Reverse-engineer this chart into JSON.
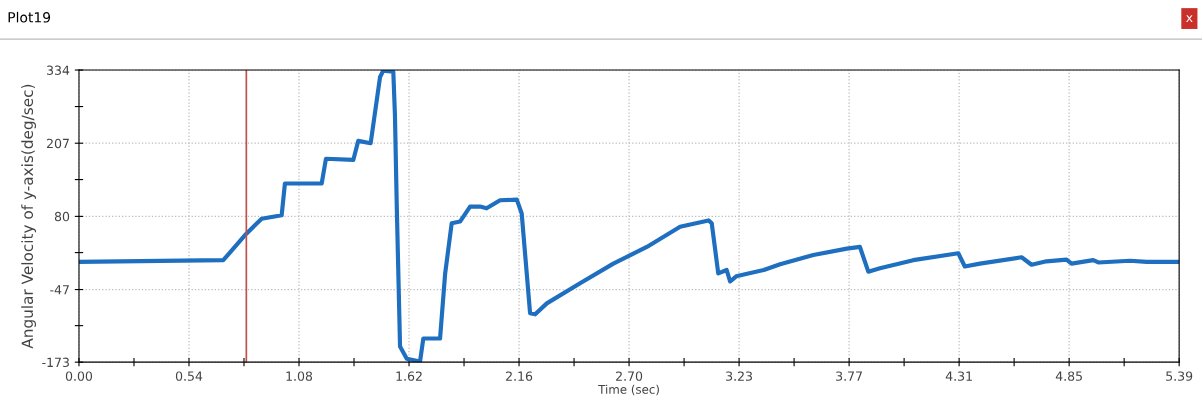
{
  "chart_data": {
    "type": "line",
    "title": "Plot19",
    "xlabel": "Time (sec)",
    "ylabel": "Angular Velocity of y-axis(deg/sec)",
    "annotations": [
      "x"
    ],
    "x": [
      0,
      0.707,
      0.82,
      0.895,
      0.993,
      1.009,
      1.189,
      1.21,
      1.344,
      1.368,
      1.429,
      1.475,
      1.491,
      1.54,
      1.548,
      1.557,
      1.573,
      1.606,
      1.671,
      1.687,
      1.769,
      1.794,
      1.826,
      1.867,
      1.916,
      1.965,
      1.997,
      2.063,
      2.145,
      2.169,
      2.21,
      2.235,
      2.292,
      2.455,
      2.618,
      2.782,
      2.945,
      3.084,
      3.1,
      3.132,
      3.173,
      3.19,
      3.22,
      3.355,
      3.435,
      3.598,
      3.762,
      3.826,
      3.867,
      3.924,
      4.087,
      4.308,
      4.34,
      4.414,
      4.618,
      4.667,
      4.74,
      4.838,
      4.863,
      4.969,
      4.994,
      5.149,
      5.231,
      5.39
    ],
    "series": [
      {
        "color": "#1f6fc1",
        "values": [
          1,
          4,
          50,
          76,
          82,
          137,
          137,
          180,
          178,
          211,
          207,
          322,
          333,
          331,
          256,
          97,
          -146,
          -167,
          -172,
          -132,
          -132,
          -19,
          68,
          71,
          97,
          97,
          94,
          108,
          109,
          85,
          -88,
          -90,
          -71,
          -36,
          -2,
          27,
          62,
          73,
          68,
          -19,
          -13,
          -33,
          -24,
          -13,
          -3,
          13,
          24,
          27,
          -16,
          -10,
          4,
          16,
          -7,
          -2,
          9,
          -4,
          2,
          5,
          -2,
          4,
          0,
          3,
          1,
          1
        ]
      }
    ],
    "xlim": [
      0,
      5.39
    ],
    "ylim": [
      -173,
      334
    ],
    "xticks": [
      {
        "value": 0,
        "label": "0.00"
      },
      {
        "value": 0.2695,
        "label": null
      },
      {
        "value": 0.539,
        "label": "0.54"
      },
      {
        "value": 0.8085,
        "label": null
      },
      {
        "value": 1.078,
        "label": "1.08"
      },
      {
        "value": 1.3475,
        "label": null
      },
      {
        "value": 1.617,
        "label": "1.62"
      },
      {
        "value": 1.8865,
        "label": null
      },
      {
        "value": 2.156,
        "label": "2.16"
      },
      {
        "value": 2.4255,
        "label": null
      },
      {
        "value": 2.695,
        "label": "2.70"
      },
      {
        "value": 2.9645,
        "label": null
      },
      {
        "value": 3.234,
        "label": "3.23"
      },
      {
        "value": 3.5035,
        "label": null
      },
      {
        "value": 3.773,
        "label": "3.77"
      },
      {
        "value": 4.0425,
        "label": null
      },
      {
        "value": 4.312,
        "label": "4.31"
      },
      {
        "value": 4.5815,
        "label": null
      },
      {
        "value": 4.851,
        "label": "4.85"
      },
      {
        "value": 5.1205,
        "label": null
      },
      5.39
    ],
    "yticks": [
      -173,
      {
        "value": -109.625,
        "label": null
      },
      -47,
      {
        "value": 17.125,
        "label": null
      },
      80,
      {
        "value": 143.875,
        "label": null
      },
      207,
      {
        "value": 270.625,
        "label": null
      },
      334
    ],
    "ref_lines": [
      {
        "axis": "x",
        "value": 0.82,
        "color": "#c0504d"
      }
    ],
    "grid": true,
    "legend": false,
    "marker": "none",
    "line_style": "solid"
  }
}
